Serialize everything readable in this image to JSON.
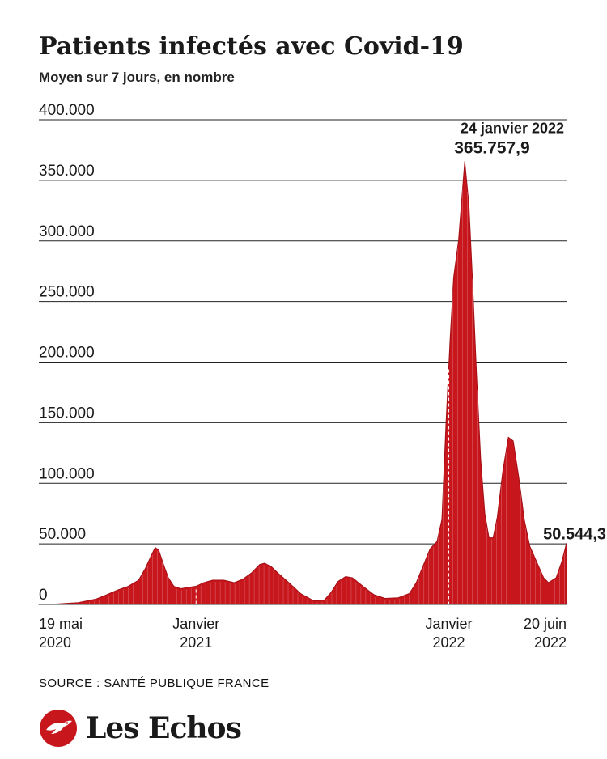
{
  "title": "Patients infectés avec Covid-19",
  "subtitle": "Moyen sur 7 jours, en nombre",
  "source": "SOURCE : SANTÉ PUBLIQUE FRANCE",
  "logo": {
    "text": "Les Echos",
    "icon": "les-echos-bird-logo"
  },
  "colors": {
    "bar": "#c8161d",
    "grid": "#222222",
    "text": "#1a1a1a"
  },
  "chart_data": {
    "type": "area",
    "title": "Patients infectés avec Covid-19",
    "subtitle": "Moyen sur 7 jours, en nombre",
    "ylim": [
      0,
      400000
    ],
    "yticks": [
      {
        "value": 0,
        "label": "0"
      },
      {
        "value": 50000,
        "label": "50.000"
      },
      {
        "value": 100000,
        "label": "100.000"
      },
      {
        "value": 150000,
        "label": "150.000"
      },
      {
        "value": 200000,
        "label": "200.000"
      },
      {
        "value": 250000,
        "label": "250.000"
      },
      {
        "value": 300000,
        "label": "300.000"
      },
      {
        "value": 350000,
        "label": "350.000"
      },
      {
        "value": 400000,
        "label": "400.000"
      }
    ],
    "xrange": [
      "2020-05-19",
      "2022-06-20"
    ],
    "xticks": [
      {
        "date": "2020-05-19",
        "line1": "19 mai",
        "line2": "2020",
        "align": "start"
      },
      {
        "date": "2021-01-01",
        "line1": "Janvier",
        "line2": "2021",
        "align": "middle"
      },
      {
        "date": "2022-01-01",
        "line1": "Janvier",
        "line2": "2022",
        "align": "middle"
      },
      {
        "date": "2022-06-20",
        "line1": "20 juin",
        "line2": "2022",
        "align": "end"
      }
    ],
    "grid": true,
    "points": [
      [
        "2020-05-19",
        200
      ],
      [
        "2020-06-15",
        400
      ],
      [
        "2020-07-15",
        1500
      ],
      [
        "2020-08-10",
        4500
      ],
      [
        "2020-08-25",
        8000
      ],
      [
        "2020-09-10",
        12000
      ],
      [
        "2020-09-25",
        15000
      ],
      [
        "2020-10-10",
        20000
      ],
      [
        "2020-10-20",
        30000
      ],
      [
        "2020-10-28",
        40000
      ],
      [
        "2020-11-03",
        47000
      ],
      [
        "2020-11-08",
        45000
      ],
      [
        "2020-11-15",
        33000
      ],
      [
        "2020-11-22",
        22000
      ],
      [
        "2020-11-30",
        15000
      ],
      [
        "2020-12-10",
        13000
      ],
      [
        "2020-12-20",
        14000
      ],
      [
        "2021-01-01",
        15000
      ],
      [
        "2021-01-12",
        18000
      ],
      [
        "2021-01-25",
        20000
      ],
      [
        "2021-02-10",
        20000
      ],
      [
        "2021-02-25",
        18000
      ],
      [
        "2021-03-10",
        21000
      ],
      [
        "2021-03-22",
        26000
      ],
      [
        "2021-04-03",
        33000
      ],
      [
        "2021-04-10",
        34000
      ],
      [
        "2021-04-20",
        31000
      ],
      [
        "2021-05-01",
        25000
      ],
      [
        "2021-05-15",
        18000
      ],
      [
        "2021-06-01",
        9000
      ],
      [
        "2021-06-20",
        3000
      ],
      [
        "2021-07-05",
        3500
      ],
      [
        "2021-07-15",
        10000
      ],
      [
        "2021-07-25",
        19000
      ],
      [
        "2021-08-05",
        23000
      ],
      [
        "2021-08-15",
        22000
      ],
      [
        "2021-08-30",
        15000
      ],
      [
        "2021-09-15",
        8000
      ],
      [
        "2021-10-01",
        5000
      ],
      [
        "2021-10-20",
        5500
      ],
      [
        "2021-11-05",
        9000
      ],
      [
        "2021-11-15",
        18000
      ],
      [
        "2021-11-25",
        32000
      ],
      [
        "2021-12-05",
        46000
      ],
      [
        "2021-12-15",
        52000
      ],
      [
        "2021-12-22",
        70000
      ],
      [
        "2021-12-28",
        150000
      ],
      [
        "2022-01-03",
        220000
      ],
      [
        "2022-01-08",
        270000
      ],
      [
        "2022-01-15",
        300000
      ],
      [
        "2022-01-24",
        365757.9
      ],
      [
        "2022-01-30",
        330000
      ],
      [
        "2022-02-04",
        270000
      ],
      [
        "2022-02-10",
        190000
      ],
      [
        "2022-02-16",
        120000
      ],
      [
        "2022-02-22",
        75000
      ],
      [
        "2022-02-28",
        55000
      ],
      [
        "2022-03-06",
        55000
      ],
      [
        "2022-03-12",
        72000
      ],
      [
        "2022-03-20",
        110000
      ],
      [
        "2022-03-28",
        138000
      ],
      [
        "2022-04-04",
        135000
      ],
      [
        "2022-04-12",
        105000
      ],
      [
        "2022-04-20",
        70000
      ],
      [
        "2022-04-28",
        48000
      ],
      [
        "2022-05-08",
        35000
      ],
      [
        "2022-05-18",
        22000
      ],
      [
        "2022-05-25",
        18000
      ],
      [
        "2022-06-05",
        22000
      ],
      [
        "2022-06-13",
        35000
      ],
      [
        "2022-06-20",
        50544.3
      ]
    ],
    "annotations": [
      {
        "date": "2022-01-24",
        "value": 365757.9,
        "label": "24 janvier 2022",
        "value_label": "365.757,9"
      },
      {
        "date": "2022-06-20",
        "value": 50544.3,
        "value_label": "50.544,3"
      }
    ],
    "reference_lines": [
      {
        "date": "2021-01-01",
        "style": "dashed"
      },
      {
        "date": "2022-01-01",
        "style": "dashed"
      }
    ]
  }
}
